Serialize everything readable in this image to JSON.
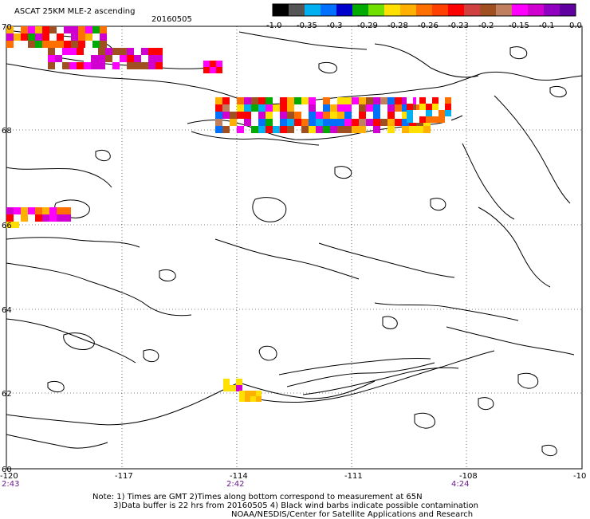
{
  "title": "ASCAT 25KM MLE-2 ascending",
  "date": "20160505",
  "colorbar": {
    "labels": [
      "-1.0",
      "-0.35",
      "-0.3",
      "-0.29",
      "-0.28",
      "-0.26",
      "-0.23",
      "-0.2",
      "-0.15",
      "-0.1",
      "0.0"
    ],
    "colors": [
      "#000000",
      "#555555",
      "#00b0f0",
      "#0070ff",
      "#0000cc",
      "#00aa00",
      "#70e000",
      "#ffe000",
      "#ffb000",
      "#ff7000",
      "#ff4000",
      "#ff0000",
      "#d04040",
      "#a05020",
      "#c08060",
      "#ff00ff",
      "#d000d0",
      "#9000c0",
      "#6000a0"
    ]
  },
  "lat_labels": [
    "70",
    "68",
    "66",
    "64",
    "62",
    "60"
  ],
  "lon_labels": [
    "-120",
    "-117",
    "-114",
    "-111",
    "-108",
    "-10"
  ],
  "time_labels": [
    "2:43",
    "2:42",
    "4:24"
  ],
  "notes": [
    "Note: 1) Times are GMT 2)Times along bottom correspond to measurement at 65N",
    "3)Data buffer is 22 hrs from 20160505 4) Black wind barbs indicate possible contamination",
    "NOAA/NESDIS/Center for Satellite Applications and Research"
  ]
}
